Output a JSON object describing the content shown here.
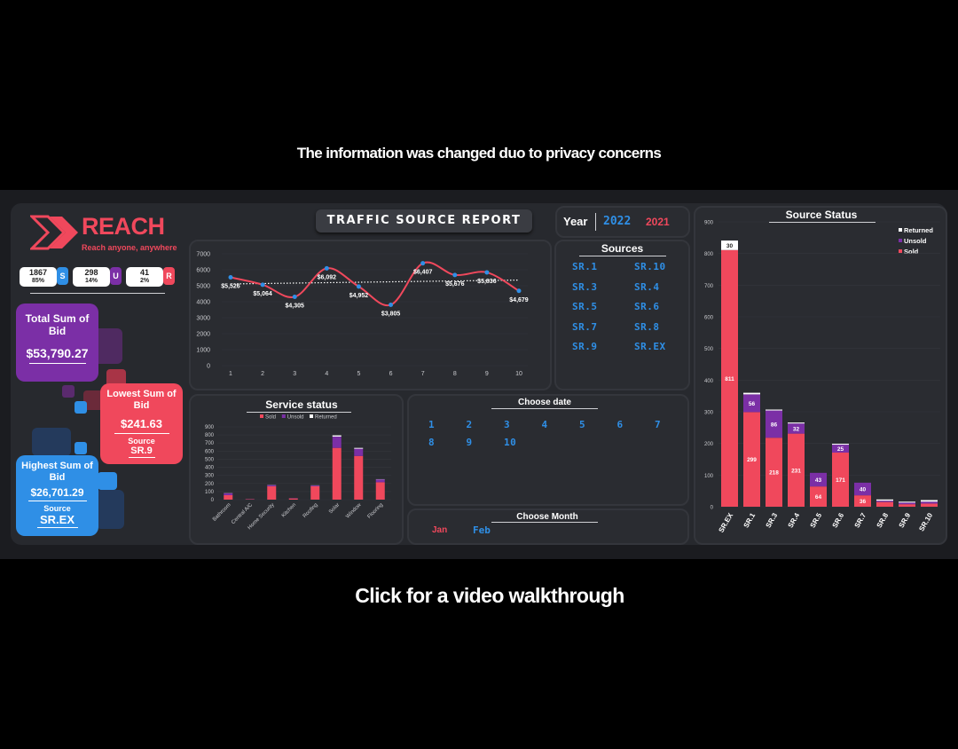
{
  "notice": "The information was changed duo to privacy concerns",
  "walkthrough": "Click for a video walkthrough",
  "brand": {
    "name": "REACH",
    "tagline": "Reach anyone, anywhere"
  },
  "colors": {
    "sold": "#f0485c",
    "unsold": "#7b2fa6",
    "returned": "#ffffff",
    "accent_blue": "#2f8fe6"
  },
  "kpis": [
    {
      "value": "1867",
      "pct": "85%",
      "tag": "S",
      "color": "#2f8fe6"
    },
    {
      "value": "298",
      "pct": "14%",
      "tag": "U",
      "color": "#7b2fa6"
    },
    {
      "value": "41",
      "pct": "2%",
      "tag": "R",
      "color": "#f0485c"
    }
  ],
  "total_bid": {
    "label": "Total Sum of Bid",
    "value": "$53,790.27"
  },
  "lowest_bid": {
    "label": "Lowest Sum of Bid",
    "value": "$241.63",
    "source_label": "Source",
    "source": "SR.9"
  },
  "highest_bid": {
    "label": "Highest Sum of Bid",
    "value": "$26,701.29",
    "source_label": "Source",
    "source": "SR.EX"
  },
  "report_title": "TRAFFIC SOURCE REPORT",
  "year": {
    "label": "Year",
    "options": [
      "2022",
      "2021"
    ]
  },
  "sources": {
    "title": "Sources",
    "items": [
      "SR.1",
      "SR.10",
      "SR.3",
      "SR.4",
      "SR.5",
      "SR.6",
      "SR.7",
      "SR.8",
      "SR.9",
      "SR.EX"
    ]
  },
  "choose_date": {
    "title": "Choose date",
    "days": [
      "1",
      "2",
      "3",
      "4",
      "5",
      "6",
      "7",
      "8",
      "9",
      "10"
    ]
  },
  "choose_month": {
    "title": "Choose Month",
    "months": [
      "Jan",
      "Feb"
    ]
  },
  "service_status_title": "Service status",
  "source_status_title": "Source Status",
  "legend": {
    "sold": "Sold",
    "unsold": "Unsold",
    "returned": "Returned"
  },
  "chart_data": [
    {
      "type": "line",
      "x": [
        1,
        2,
        3,
        4,
        5,
        6,
        7,
        8,
        9,
        10
      ],
      "values": [
        5526,
        5064,
        4305,
        6092,
        4952,
        3805,
        6407,
        5676,
        5836,
        4679
      ],
      "labels": [
        "$5,526",
        "$5,064",
        "$4,305",
        "$6,092",
        "$4,952",
        "$3,805",
        "$6,407",
        "$5,676",
        "$5,836",
        "$4,679"
      ],
      "ylim": [
        0,
        7000
      ],
      "yticks": [
        0,
        1000,
        2000,
        3000,
        4000,
        5000,
        6000,
        7000
      ],
      "trendline": true,
      "color": "#f0485c"
    },
    {
      "type": "bar",
      "title": "Service status",
      "categories": [
        "Bathroom",
        "Central A/C",
        "Home Security",
        "Kitchen",
        "Roofing",
        "Solar",
        "Window",
        "Flooring"
      ],
      "series": [
        {
          "name": "Sold",
          "values": [
            55,
            5,
            165,
            15,
            165,
            640,
            540,
            215
          ]
        },
        {
          "name": "Unsold",
          "values": [
            25,
            2,
            15,
            3,
            10,
            140,
            90,
            35
          ]
        },
        {
          "name": "Returned",
          "values": [
            2,
            0,
            2,
            0,
            2,
            15,
            10,
            3
          ]
        }
      ],
      "ylim": [
        0,
        900
      ],
      "yticks": [
        0,
        100,
        200,
        300,
        400,
        500,
        600,
        700,
        800,
        900
      ]
    },
    {
      "type": "bar",
      "title": "Source Status",
      "categories": [
        "SR.EX",
        "SR.1",
        "SR.3",
        "SR.4",
        "SR.5",
        "SR.6",
        "SR.7",
        "SR.8",
        "SR.9",
        "SR.10"
      ],
      "series": [
        {
          "name": "Sold",
          "values": [
            811,
            299,
            218,
            231,
            64,
            171,
            36,
            15,
            8,
            10
          ],
          "labels": [
            "811",
            "299",
            "218",
            "231",
            "64",
            "171",
            "36",
            "",
            "",
            ""
          ]
        },
        {
          "name": "Unsold",
          "values": [
            0,
            56,
            86,
            32,
            43,
            25,
            40,
            4,
            5,
            6
          ],
          "labels": [
            "",
            "56",
            "86",
            "32",
            "43",
            "25",
            "40",
            "",
            "",
            ""
          ]
        },
        {
          "name": "Returned",
          "values": [
            30,
            5,
            3,
            3,
            0,
            3,
            0,
            4,
            3,
            5
          ],
          "labels": [
            "30",
            "",
            "",
            "",
            "",
            "",
            "",
            "",
            "",
            ""
          ]
        }
      ],
      "ylim": [
        0,
        900
      ],
      "yticks": [
        0,
        100,
        200,
        300,
        400,
        500,
        600,
        700,
        800,
        900
      ],
      "legend": "top-right"
    }
  ]
}
